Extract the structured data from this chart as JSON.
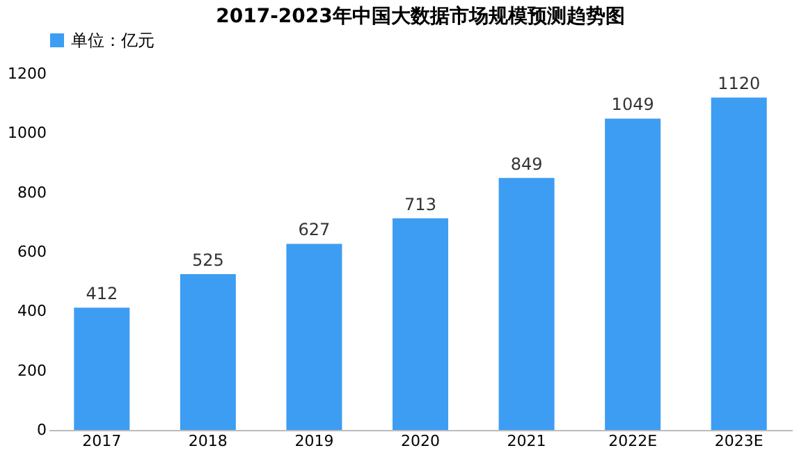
{
  "chart_data": {
    "type": "bar",
    "title": "2017-2023年中国大数据市场规模预测趋势图",
    "categories": [
      "2017",
      "2018",
      "2019",
      "2020",
      "2021",
      "2022E",
      "2023E"
    ],
    "series": [
      {
        "name": "单位：亿元",
        "color": "#3d9df2",
        "values": [
          412,
          525,
          627,
          713,
          849,
          1049,
          1120
        ]
      }
    ],
    "ylim": [
      0,
      1200
    ],
    "yticks": [
      0,
      200,
      400,
      600,
      800,
      1000,
      1200
    ],
    "grid": false,
    "legend": "top",
    "data_labels": true
  }
}
